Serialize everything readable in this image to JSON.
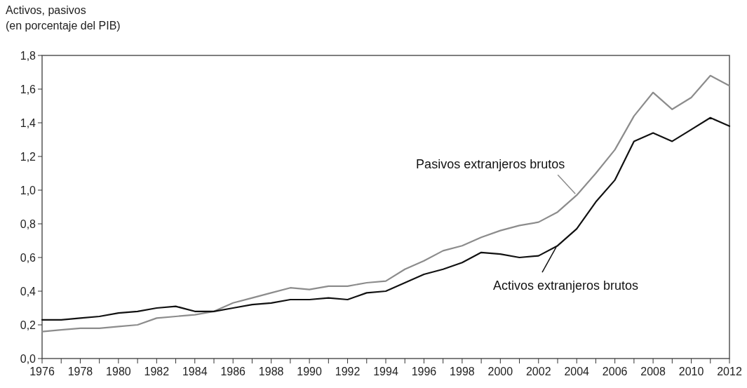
{
  "chart_data": {
    "type": "line",
    "ylabel": "Activos, pasivos\n(en porcentaje del PIB)",
    "x": [
      1976,
      1977,
      1978,
      1979,
      1980,
      1981,
      1982,
      1983,
      1984,
      1985,
      1986,
      1987,
      1988,
      1989,
      1990,
      1991,
      1992,
      1993,
      1994,
      1995,
      1996,
      1997,
      1998,
      1999,
      2000,
      2001,
      2002,
      2003,
      2004,
      2005,
      2006,
      2007,
      2008,
      2009,
      2010,
      2011,
      2012
    ],
    "xlim": [
      1976,
      2012
    ],
    "xticks": [
      1976,
      {
        "value": 1977,
        "label": null
      },
      1978,
      {
        "value": 1979,
        "label": null
      },
      1980,
      {
        "value": 1981,
        "label": null
      },
      1982,
      {
        "value": 1983,
        "label": null
      },
      1984,
      {
        "value": 1985,
        "label": null
      },
      1986,
      {
        "value": 1987,
        "label": null
      },
      1988,
      {
        "value": 1989,
        "label": null
      },
      1990,
      {
        "value": 1991,
        "label": null
      },
      1992,
      {
        "value": 1993,
        "label": null
      },
      1994,
      {
        "value": 1995,
        "label": null
      },
      1996,
      {
        "value": 1997,
        "label": null
      },
      1998,
      {
        "value": 1999,
        "label": null
      },
      2000,
      {
        "value": 2001,
        "label": null
      },
      2002,
      {
        "value": 2003,
        "label": null
      },
      2004,
      {
        "value": 2005,
        "label": null
      },
      2006,
      {
        "value": 2007,
        "label": null
      },
      2008,
      {
        "value": 2009,
        "label": null
      },
      2010,
      {
        "value": 2011,
        "label": null
      },
      2012
    ],
    "ylim": [
      0,
      1.8
    ],
    "yticks": [
      {
        "value": 0,
        "label": "0,0"
      },
      {
        "value": 0.2,
        "label": "0,2"
      },
      {
        "value": 0.4,
        "label": "0,4"
      },
      {
        "value": 0.6,
        "label": "0,6"
      },
      {
        "value": 0.8,
        "label": "0,8"
      },
      {
        "value": 1.0,
        "label": "1,0"
      },
      {
        "value": 1.2,
        "label": "1,2"
      },
      {
        "value": 1.4,
        "label": "1,4"
      },
      {
        "value": 1.6,
        "label": "1,6"
      },
      {
        "value": 1.8,
        "label": "1,8"
      }
    ],
    "grid": false,
    "marker": "none",
    "line_style": "solid",
    "series": [
      {
        "name": "Pasivos extranjeros brutos",
        "color": "#8c8c8c",
        "values": [
          0.16,
          0.17,
          0.18,
          0.18,
          0.19,
          0.2,
          0.24,
          0.25,
          0.26,
          0.28,
          0.33,
          0.36,
          0.39,
          0.42,
          0.41,
          0.43,
          0.43,
          0.45,
          0.46,
          0.53,
          0.58,
          0.64,
          0.67,
          0.72,
          0.76,
          0.79,
          0.81,
          0.87,
          0.97,
          1.1,
          1.24,
          1.44,
          1.58,
          1.48,
          1.55,
          1.68,
          1.62
        ]
      },
      {
        "name": "Activos extranjeros brutos",
        "color": "#111111",
        "values": [
          0.23,
          0.23,
          0.24,
          0.25,
          0.27,
          0.28,
          0.3,
          0.31,
          0.28,
          0.28,
          0.3,
          0.32,
          0.33,
          0.35,
          0.35,
          0.36,
          0.35,
          0.39,
          0.4,
          0.45,
          0.5,
          0.53,
          0.57,
          0.63,
          0.62,
          0.6,
          0.61,
          0.67,
          0.77,
          0.93,
          1.06,
          1.29,
          1.34,
          1.29,
          1.36,
          1.43,
          1.38
        ]
      }
    ]
  }
}
